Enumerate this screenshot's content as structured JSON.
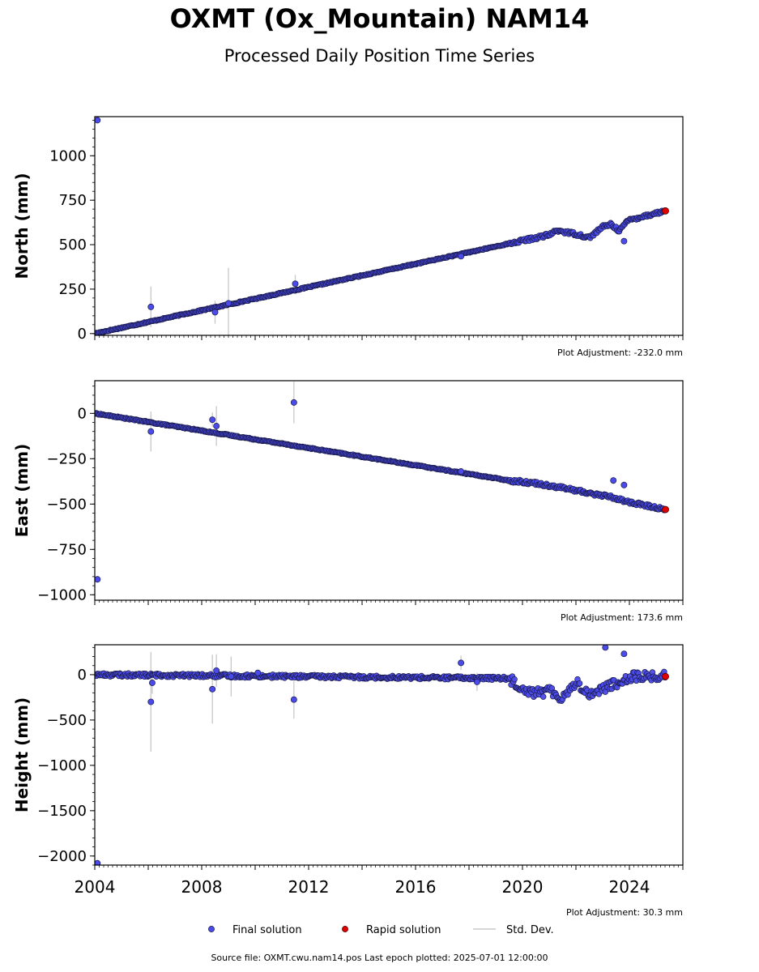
{
  "title": "OXMT (Ox_Mountain) NAM14",
  "subtitle": "Processed Daily Position Time Series",
  "footer": "Source file: OXMT.cwu.nam14.pos  Last epoch plotted: 2025-07-01 12:00:00",
  "colors": {
    "final": "#4b4bea",
    "final_edge": "#1a1a4a",
    "rapid": "#e00000",
    "stddev": "#c8c8c8"
  },
  "legend": {
    "final": "Final solution",
    "rapid": "Rapid solution",
    "stddev": "Std. Dev."
  },
  "chart_data": [
    {
      "type": "scatter",
      "ylabel": "North (mm)",
      "adjustment": "Plot Adjustment: -232.0 mm",
      "xlim": [
        2004,
        2026
      ],
      "ylim": [
        -10,
        1220
      ],
      "yticks": [
        0,
        250,
        500,
        750,
        1000
      ],
      "ytick_labels": [
        "0",
        "250",
        "500",
        "750",
        "1000"
      ],
      "trend": [
        [
          2004,
          0
        ],
        [
          2021.0,
          555
        ],
        [
          2021.3,
          580
        ],
        [
          2022.0,
          560
        ],
        [
          2022.5,
          540
        ],
        [
          2023.0,
          600
        ],
        [
          2023.3,
          615
        ],
        [
          2023.6,
          580
        ],
        [
          2024.0,
          640
        ],
        [
          2025.35,
          690
        ]
      ],
      "outliers": [
        {
          "x": 2004.1,
          "y": 1200,
          "err": 0
        },
        {
          "x": 2006.1,
          "y": 150,
          "err": 115
        },
        {
          "x": 2008.5,
          "y": 120,
          "err": 65
        },
        {
          "x": 2009.0,
          "y": 170,
          "err": 200
        },
        {
          "x": 2011.5,
          "y": 280,
          "err": 50
        },
        {
          "x": 2017.7,
          "y": 435,
          "err": 15
        },
        {
          "x": 2023.8,
          "y": 520,
          "err": 15
        }
      ],
      "rapid": [
        2025.35,
        690
      ]
    },
    {
      "type": "scatter",
      "ylabel": "East (mm)",
      "adjustment": "Plot Adjustment: 173.6 mm",
      "xlim": [
        2004,
        2026
      ],
      "ylim": [
        -1030,
        180
      ],
      "yticks": [
        -1000,
        -750,
        -500,
        -250,
        0
      ],
      "ytick_labels": [
        "−1000",
        "−750",
        "−500",
        "−250",
        "0"
      ],
      "trend": [
        [
          2004,
          0
        ],
        [
          2019.5,
          -370
        ],
        [
          2020.5,
          -385
        ],
        [
          2021.5,
          -410
        ],
        [
          2022.5,
          -440
        ],
        [
          2023.3,
          -460
        ],
        [
          2024.0,
          -490
        ],
        [
          2025.35,
          -530
        ]
      ],
      "outliers": [
        {
          "x": 2004.1,
          "y": -915,
          "err": 0
        },
        {
          "x": 2006.1,
          "y": -100,
          "err": 110
        },
        {
          "x": 2008.4,
          "y": -35,
          "err": 40
        },
        {
          "x": 2008.55,
          "y": -70,
          "err": 110
        },
        {
          "x": 2011.45,
          "y": 60,
          "err": 115
        },
        {
          "x": 2017.7,
          "y": -320,
          "err": 15
        },
        {
          "x": 2023.4,
          "y": -370,
          "err": 20
        },
        {
          "x": 2023.8,
          "y": -395,
          "err": 20
        }
      ],
      "rapid": [
        2025.35,
        -530
      ]
    },
    {
      "type": "scatter",
      "ylabel": "Height (mm)",
      "adjustment": "Plot Adjustment: 30.3 mm",
      "xlim": [
        2004,
        2026
      ],
      "ylim": [
        -2100,
        330
      ],
      "yticks": [
        -2000,
        -1500,
        -1000,
        -500,
        0
      ],
      "ytick_labels": [
        "−2000",
        "−1500",
        "−1000",
        "−500",
        "0"
      ],
      "xticks": [
        2004,
        2008,
        2012,
        2016,
        2020,
        2024
      ],
      "trend": [
        [
          2004,
          0
        ],
        [
          2019.5,
          -40
        ],
        [
          2020.0,
          -150
        ],
        [
          2020.5,
          -200
        ],
        [
          2021.0,
          -180
        ],
        [
          2021.5,
          -250
        ],
        [
          2022.0,
          -80
        ],
        [
          2022.5,
          -220
        ],
        [
          2023.0,
          -150
        ],
        [
          2023.5,
          -100
        ],
        [
          2024.0,
          -20
        ],
        [
          2025.35,
          -20
        ]
      ],
      "outliers": [
        {
          "x": 2004.1,
          "y": -2080,
          "err": 0
        },
        {
          "x": 2006.1,
          "y": -300,
          "err": 550
        },
        {
          "x": 2006.15,
          "y": -90,
          "err": 120
        },
        {
          "x": 2008.4,
          "y": -160,
          "err": 380
        },
        {
          "x": 2008.55,
          "y": 45,
          "err": 180
        },
        {
          "x": 2009.1,
          "y": -20,
          "err": 220
        },
        {
          "x": 2010.1,
          "y": 20,
          "err": 30
        },
        {
          "x": 2011.45,
          "y": -275,
          "err": 210
        },
        {
          "x": 2017.7,
          "y": 130,
          "err": 80
        },
        {
          "x": 2018.3,
          "y": -80,
          "err": 100
        },
        {
          "x": 2023.1,
          "y": 300,
          "err": 30
        },
        {
          "x": 2023.8,
          "y": 230,
          "err": 20
        }
      ],
      "rapid": [
        2025.35,
        -20
      ]
    }
  ]
}
